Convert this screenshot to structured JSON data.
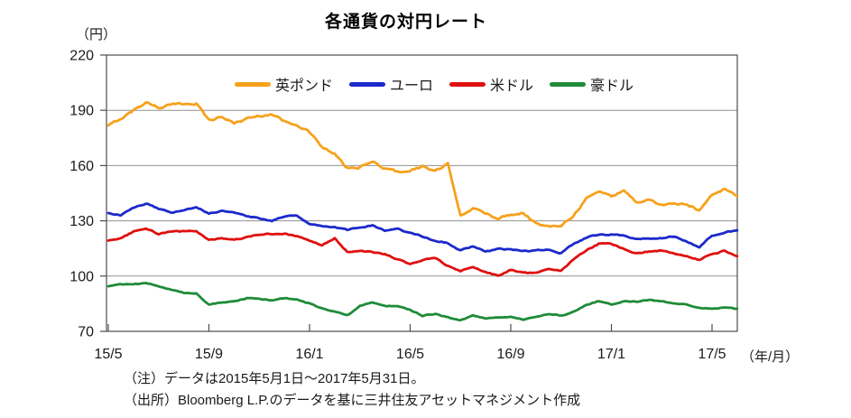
{
  "page": {
    "title": "各通貨の対円レート",
    "notes": [
      "（注）データは2015年5月1日～2017年5月31日。",
      "（出所）Bloomberg L.P.のデータを基に三井住友アセットマネジメント作成"
    ]
  },
  "chart_data": {
    "type": "line",
    "title": "各通貨の対円レート",
    "y_unit": "（円）",
    "x_unit": "（年/月）",
    "ylim": [
      70,
      220
    ],
    "y_ticks": [
      220,
      190,
      160,
      130,
      100,
      70
    ],
    "gridlines_y": [
      190,
      160,
      130,
      100
    ],
    "grid": true,
    "legend_position": "top-inside",
    "x_tick_labels": [
      "15/5",
      "15/9",
      "16/1",
      "16/5",
      "16/9",
      "17/1",
      "17/5"
    ],
    "x_tick_months": [
      0,
      4,
      8,
      12,
      16,
      20,
      24
    ],
    "x_start": "2015/5/1",
    "x_end": "2017/5/31",
    "x_step_months": 0.5,
    "series": [
      {
        "name": "英ポンド",
        "color": "#F7A11C",
        "values": [
          181.5,
          185.5,
          190,
          194.5,
          191.5,
          193,
          193.5,
          194,
          184.5,
          186.5,
          183,
          185.5,
          187,
          188,
          184,
          182.5,
          178,
          170,
          166,
          158.5,
          159,
          162,
          158.5,
          156.5,
          157.5,
          159.5,
          157,
          160.5,
          133.5,
          136.5,
          134,
          131.5,
          133.5,
          134.5,
          128.5,
          126.5,
          128,
          133,
          142,
          146,
          143.5,
          146.5,
          140,
          141.5,
          138.5,
          139.5,
          138.5,
          135.8,
          144.5,
          147.5,
          143.5
        ]
      },
      {
        "name": "ユーロ",
        "color": "#1B2ACB",
        "values": [
          134,
          133,
          137,
          139.5,
          136.5,
          134.5,
          136,
          137.5,
          134,
          135.5,
          134.5,
          132.5,
          131.5,
          130,
          132.5,
          133,
          128.5,
          127.5,
          126.5,
          125,
          126.5,
          127.5,
          124.5,
          125.5,
          123.5,
          121.5,
          119,
          118,
          114,
          116,
          113.5,
          114.5,
          114.5,
          113.5,
          114,
          114.5,
          112.5,
          117.5,
          121,
          122.5,
          122.5,
          122,
          120,
          120.5,
          120.5,
          121.5,
          119,
          115.5,
          122,
          124,
          124.8
        ]
      },
      {
        "name": "米ドル",
        "color": "#E01010",
        "values": [
          119.3,
          120.5,
          124,
          125.5,
          123,
          124,
          124.2,
          124.5,
          119.5,
          120.5,
          120,
          121,
          122.5,
          123,
          123,
          121.5,
          119,
          117,
          120.5,
          113,
          113.5,
          113,
          112,
          109,
          106.5,
          109,
          109.5,
          105.5,
          102.5,
          105,
          102,
          100.3,
          103.5,
          101.8,
          101.5,
          104,
          103,
          109,
          114,
          117.5,
          117.5,
          114.5,
          112.5,
          113.5,
          114,
          112.5,
          111,
          108.8,
          112,
          113.8,
          110.8
        ]
      },
      {
        "name": "豪ドル",
        "color": "#1F8B38",
        "values": [
          94.5,
          95.3,
          95.5,
          96.2,
          94.5,
          92.5,
          91,
          90.5,
          84.5,
          85.5,
          86.5,
          88,
          87.5,
          87,
          88,
          87.5,
          85,
          82.5,
          81,
          78.5,
          84,
          85.5,
          84,
          83.5,
          81.5,
          78.5,
          79.5,
          77.5,
          76,
          78.5,
          77,
          77.5,
          78,
          76.5,
          77.5,
          79.5,
          78.5,
          80.5,
          84.5,
          86.5,
          84.5,
          86.5,
          86,
          87,
          86.5,
          85,
          84.5,
          82.5,
          82.5,
          83,
          82.3
        ]
      }
    ]
  }
}
